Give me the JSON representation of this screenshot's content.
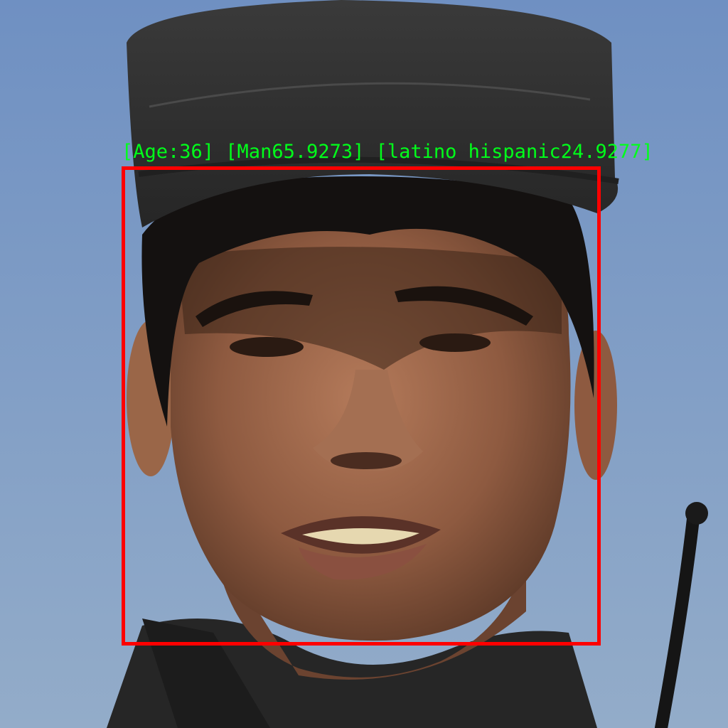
{
  "detection": {
    "label": "[Age:36] [Man65.9273] [latino hispanic24.9277]",
    "age": 36,
    "gender": "Man",
    "gender_confidence": 65.9273,
    "race": "latino hispanic",
    "race_confidence": 24.9277,
    "box_color": "#ff0000",
    "label_color": "#00ff1a"
  }
}
